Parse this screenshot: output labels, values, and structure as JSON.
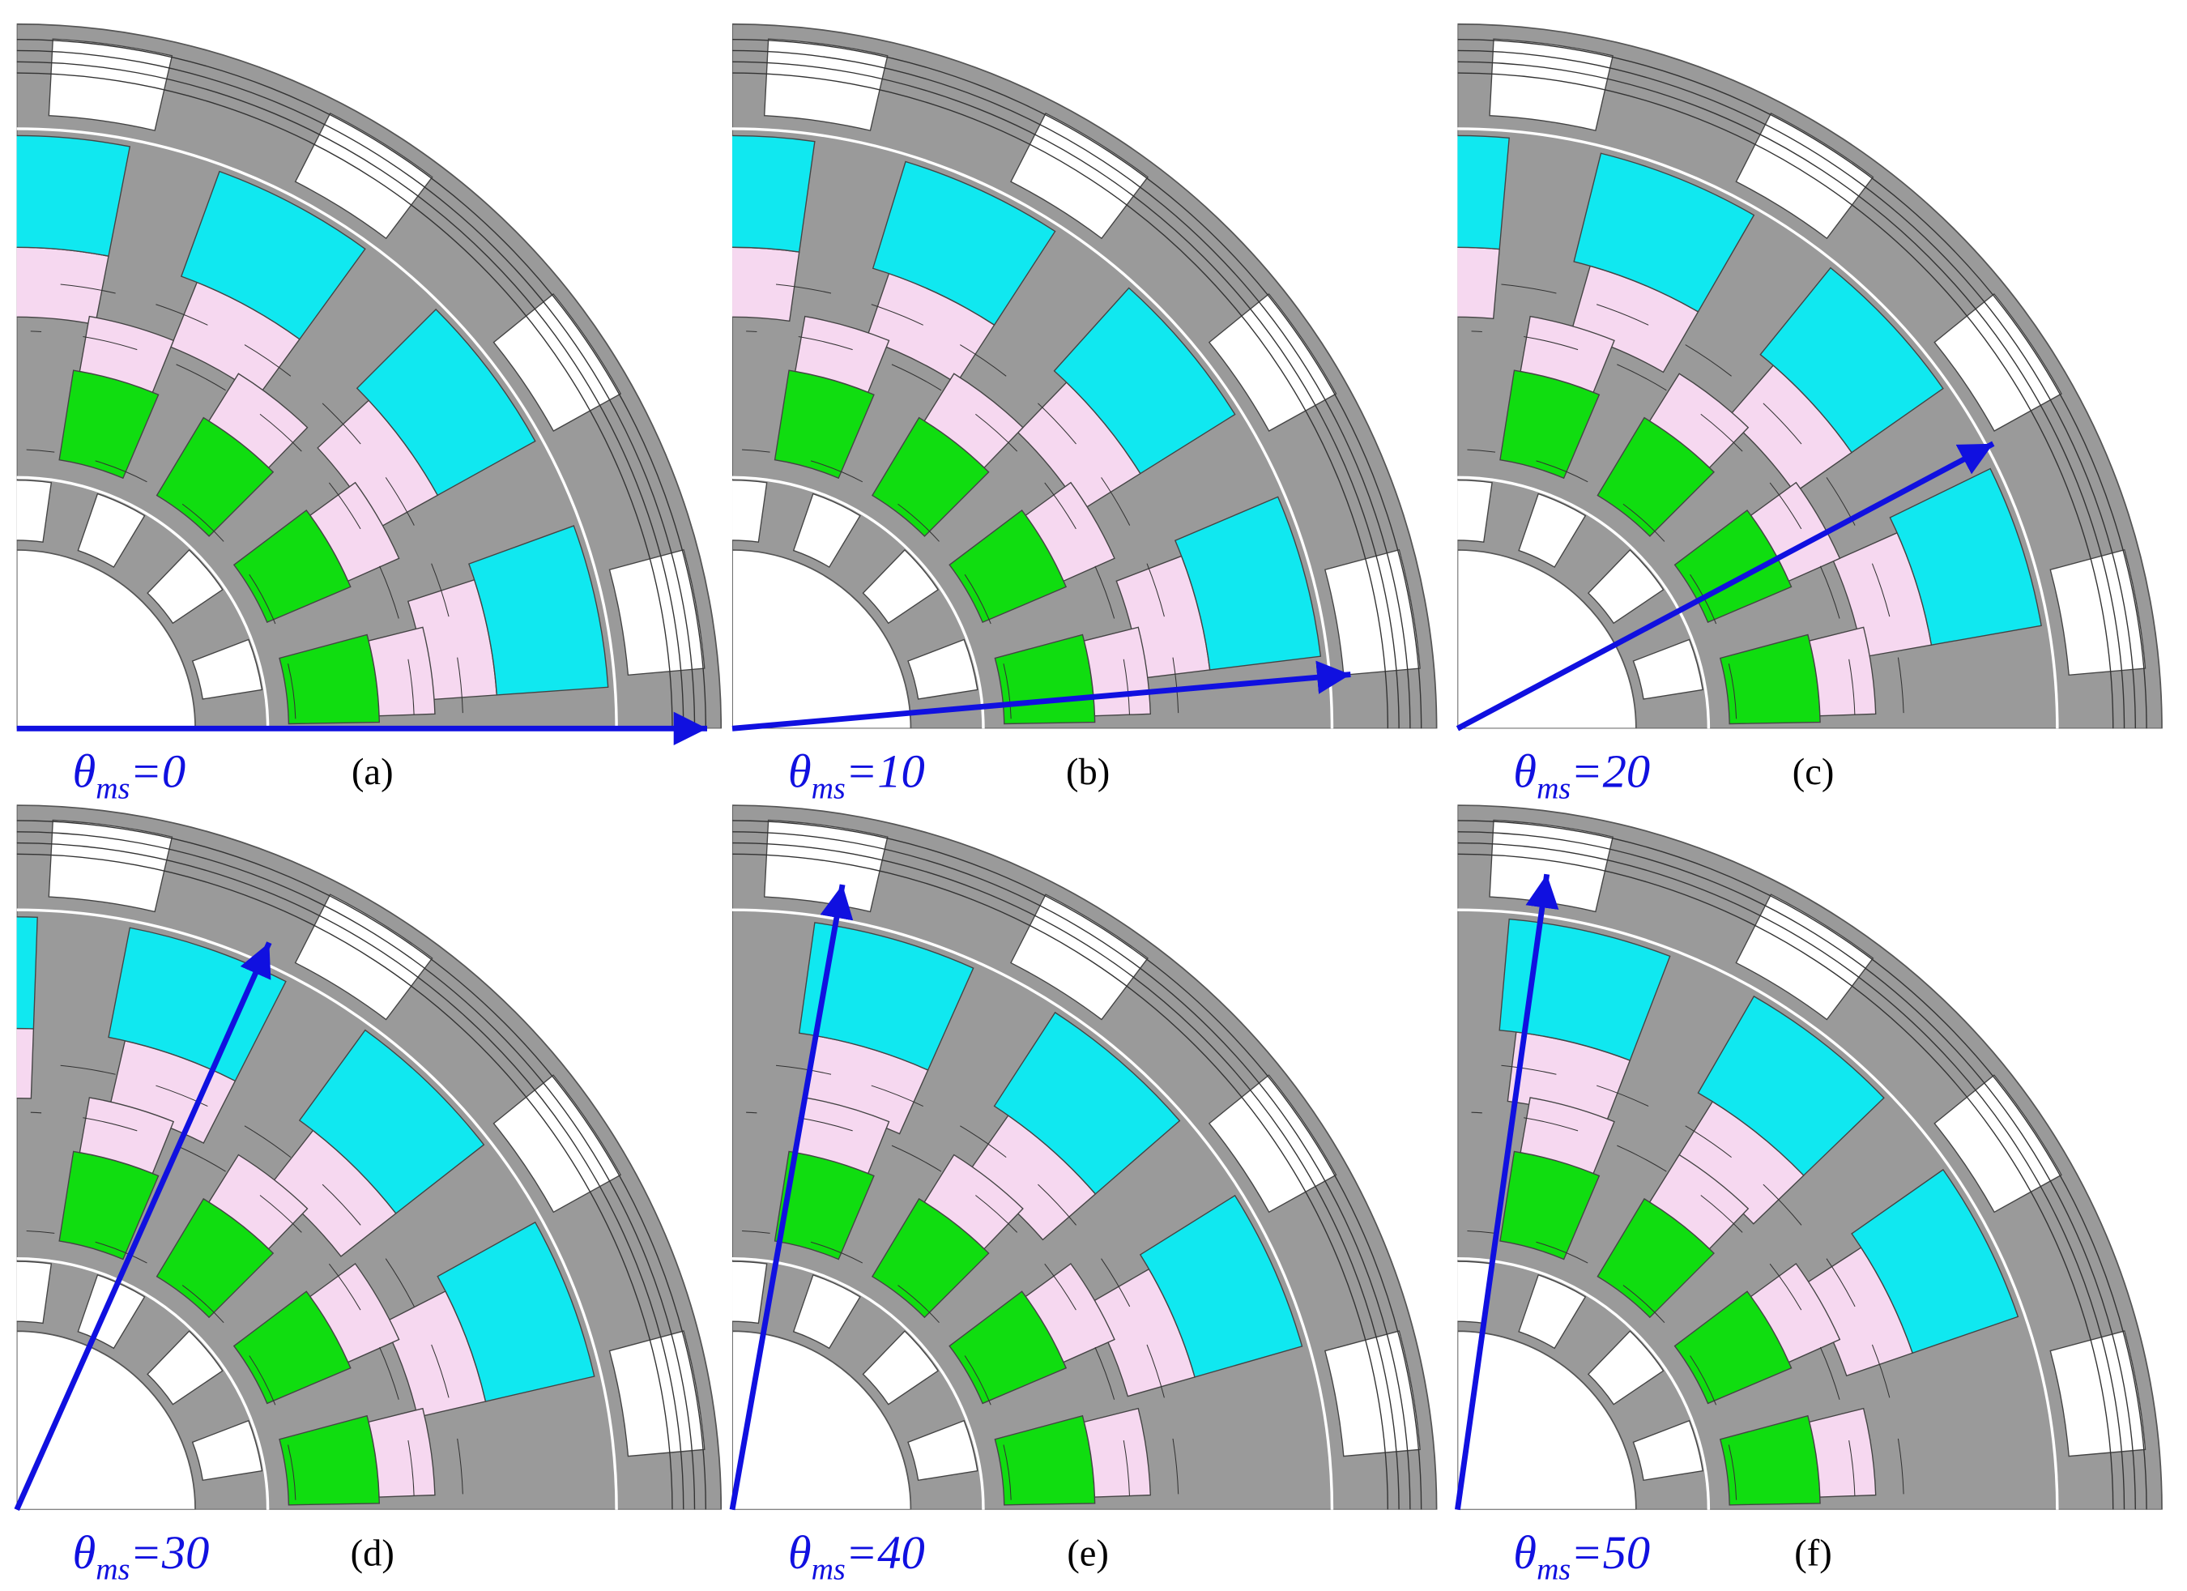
{
  "figure": {
    "panels": [
      {
        "label": "(a)",
        "theta": "θ",
        "sub": "ms",
        "rest": "=0"
      },
      {
        "label": "(b)",
        "theta": "θ",
        "sub": "ms",
        "rest": "=10"
      },
      {
        "label": "(c)",
        "theta": "θ",
        "sub": "ms",
        "rest": "=20"
      },
      {
        "label": "(d)",
        "theta": "θ",
        "sub": "ms",
        "rest": "=30"
      },
      {
        "label": "(e)",
        "theta": "θ",
        "sub": "ms",
        "rest": "=40"
      },
      {
        "label": "(f)",
        "theta": "θ",
        "sub": "ms",
        "rest": "=50"
      }
    ]
  }
}
